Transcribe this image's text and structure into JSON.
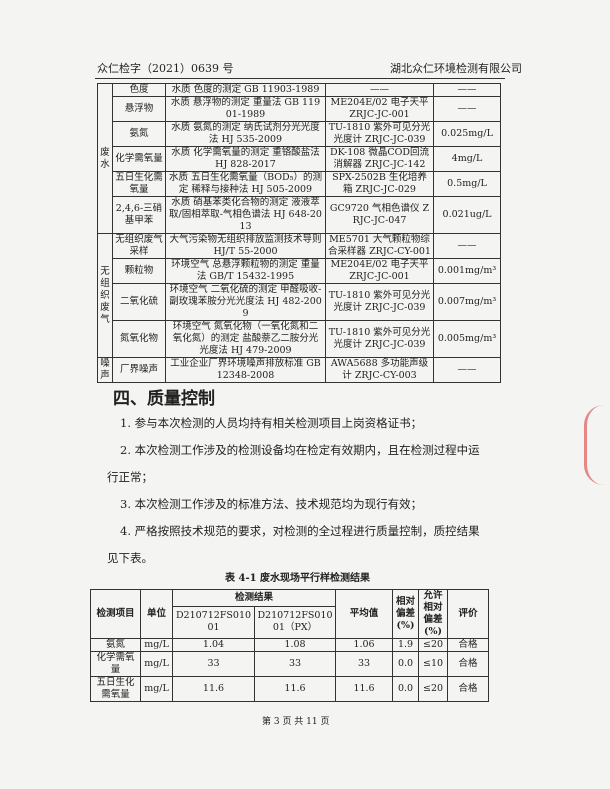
{
  "header": {
    "left": "众仁检字（2021）0639 号",
    "right": "湖北众仁环境检测有限公司"
  },
  "table1": {
    "groups": {
      "water": "废水",
      "air": "无组织废气",
      "noise": "噪声"
    },
    "rows": [
      {
        "item": "色度",
        "method": "水质 色度的测定 GB 11903-1989",
        "instrument": "——",
        "limit": "——"
      },
      {
        "item": "悬浮物",
        "method": "水质 悬浮物的测定 重量法 GB 11901-1989",
        "instrument": "ME204E/02 电子天平 ZRJC-JC-001",
        "limit": "——"
      },
      {
        "item": "氨氮",
        "method": "水质 氨氮的测定 纳氏试剂分光光度法 HJ 535-2009",
        "instrument": "TU-1810 紫外可见分光光度计 ZRJC-JC-039",
        "limit": "0.025mg/L"
      },
      {
        "item": "化学需氧量",
        "method": "水质 化学需氧量的测定 重铬酸盐法 HJ 828-2017",
        "instrument": "DK-108 微晶COD回流消解器 ZRJC-JC-142",
        "limit": "4mg/L"
      },
      {
        "item": "五日生化需氧量",
        "method": "水质 五日生化需氧量（BOD₅）的测定 稀释与接种法 HJ 505-2009",
        "instrument": "SPX-2502B 生化培养箱 ZRJC-JC-029",
        "limit": "0.5mg/L"
      },
      {
        "item": "2,4,6-三硝基甲苯",
        "method": "水质 硝基苯类化合物的测定 液液萃取/固相萃取-气相色谱法 HJ 648-2013",
        "instrument": "GC9720 气相色谱仪 ZRJC-JC-047",
        "limit": "0.021ug/L"
      },
      {
        "item": "无组织废气采样",
        "method": "大气污染物无组织排放监测技术导则 HJ/T 55-2000",
        "instrument": "ME5701 大气颗粒物综合采样器 ZRJC-CY-001",
        "limit": "——"
      },
      {
        "item": "颗粒物",
        "method": "环境空气 总悬浮颗粒物的测定 重量法 GB/T 15432-1995",
        "instrument": "ME204E/02 电子天平 ZRJC-JC-001",
        "limit": "0.001mg/m³"
      },
      {
        "item": "二氧化硫",
        "method": "环境空气 二氧化硫的测定 甲醛吸收-副玫瑰苯胺分光光度法 HJ 482-2009",
        "instrument": "TU-1810 紫外可见分光光度计 ZRJC-JC-039",
        "limit": "0.007mg/m³"
      },
      {
        "item": "氮氧化物",
        "method": "环境空气 氮氧化物（一氧化氮和二氧化氮）的测定 盐酸萘乙二胺分光光度法 HJ 479-2009",
        "instrument": "TU-1810 紫外可见分光光度计 ZRJC-JC-039",
        "limit": "0.005mg/m³"
      },
      {
        "item": "厂界噪声",
        "method": "工业企业厂界环境噪声排放标准 GB 12348-2008",
        "instrument": "AWA5688 多功能声级计 ZRJC-CY-003",
        "limit": "——"
      }
    ]
  },
  "section": {
    "title": "四、质量控制",
    "paragraphs": [
      "1. 参与本次检测的人员均持有相关检测项目上岗资格证书；",
      "2. 本次检测工作涉及的检测设备均在检定有效期内，且在检测过程中运",
      "行正常；",
      "3. 本次检测工作涉及的标准方法、技术规范均为现行有效；",
      "4. 严格按照技术规范的要求，对检测的全过程进行质量控制，质控结果",
      "见下表。"
    ]
  },
  "table2": {
    "caption": "表 4-1 废水现场平行样检测结果",
    "headers": {
      "item": "检测项目",
      "unit": "单位",
      "results": "检测结果",
      "s1": "D210712FS01001",
      "s2": "D210712FS01001（PX）",
      "avg": "平均值",
      "rel": "相对偏差(%)",
      "allow": "允许相对偏差(%)",
      "eval": "评价"
    },
    "rows": [
      {
        "item": "氨氮",
        "unit": "mg/L",
        "s1": "1.04",
        "s2": "1.08",
        "avg": "1.06",
        "rel": "1.9",
        "allow": "≤20",
        "eval": "合格"
      },
      {
        "item": "化学需氧量",
        "unit": "mg/L",
        "s1": "33",
        "s2": "33",
        "avg": "33",
        "rel": "0.0",
        "allow": "≤10",
        "eval": "合格"
      },
      {
        "item": "五日生化需氧量",
        "unit": "mg/L",
        "s1": "11.6",
        "s2": "11.6",
        "avg": "11.6",
        "rel": "0.0",
        "allow": "≤20",
        "eval": "合格"
      }
    ]
  },
  "footer": "第 3 页 共 11 页"
}
